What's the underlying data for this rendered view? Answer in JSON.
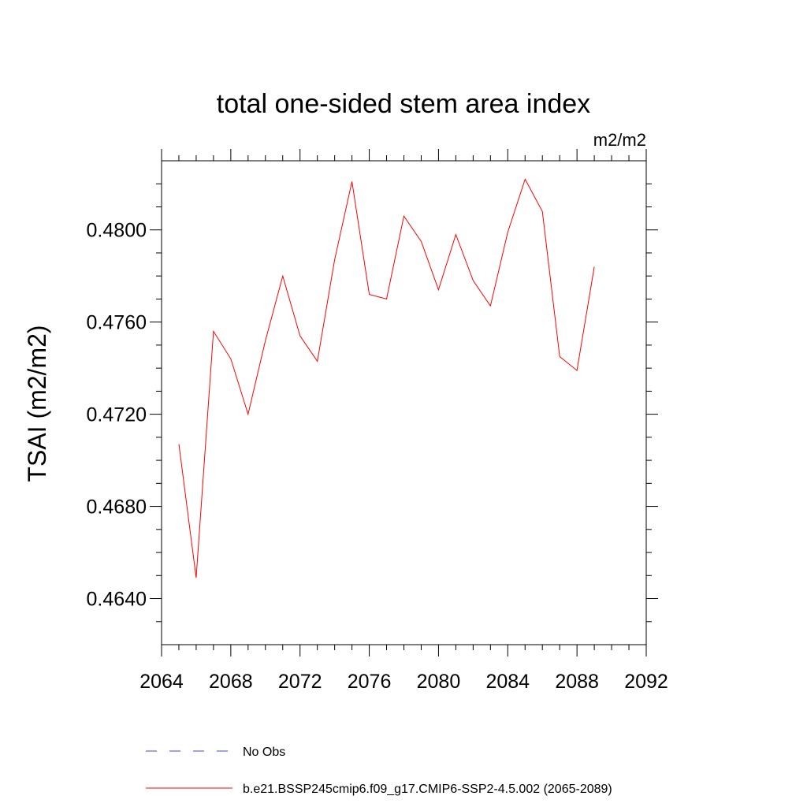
{
  "chart_data": {
    "type": "line",
    "title": "total one-sided stem area index",
    "units_label": "m2/m2",
    "ylabel": "TSAI  (m2/m2)",
    "xlabel": "",
    "xlim": [
      2064,
      2092
    ],
    "ylim": [
      0.462,
      0.483
    ],
    "x_ticks": [
      2064,
      2068,
      2072,
      2076,
      2080,
      2084,
      2088,
      2092
    ],
    "x_tick_labels": [
      "2064",
      "2068",
      "2072",
      "2076",
      "2080",
      "2084",
      "2088",
      "2092"
    ],
    "y_ticks": [
      0.464,
      0.468,
      0.472,
      0.476,
      0.48
    ],
    "y_tick_labels": [
      "0.4640",
      "0.4680",
      "0.4720",
      "0.4760",
      "0.4800"
    ],
    "grid": false,
    "legend_position": "bottom",
    "series": [
      {
        "name": "b.e21.BSSP245cmip6.f09_g17.CMIP6-SSP2-4.5.002 (2065-2089)",
        "color": "#ff0000",
        "style": "solid",
        "x": [
          2065,
          2066,
          2067,
          2068,
          2069,
          2070,
          2071,
          2072,
          2073,
          2074,
          2075,
          2076,
          2077,
          2078,
          2079,
          2080,
          2081,
          2082,
          2083,
          2084,
          2085,
          2086,
          2087,
          2088,
          2089
        ],
        "y": [
          0.4707,
          0.4649,
          0.4756,
          0.4744,
          0.472,
          0.4752,
          0.478,
          0.4754,
          0.4743,
          0.4787,
          0.4821,
          0.4772,
          0.477,
          0.4806,
          0.4795,
          0.4774,
          0.4798,
          0.4778,
          0.4767,
          0.4799,
          0.4822,
          0.4808,
          0.4745,
          0.4739,
          0.4784
        ]
      }
    ],
    "legend": [
      {
        "label": "No Obs",
        "color": "#4444cc",
        "style": "dashed"
      },
      {
        "label": "b.e21.BSSP245cmip6.f09_g17.CMIP6-SSP2-4.5.002 (2065-2089)",
        "color": "#ff0000",
        "style": "solid"
      }
    ]
  }
}
